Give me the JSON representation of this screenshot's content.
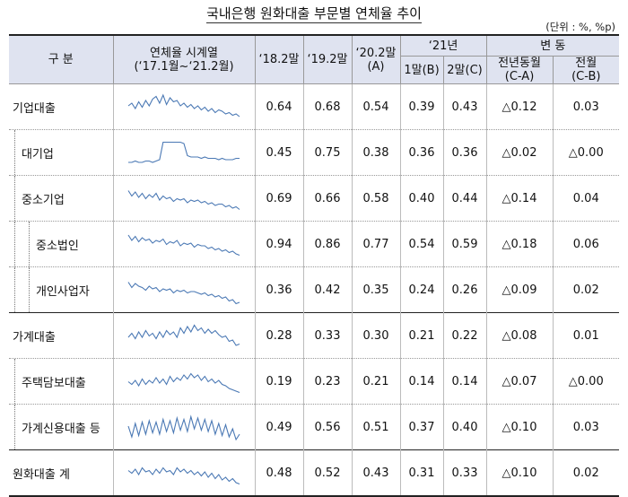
{
  "title": "국내은행 원화대출 부문별 연체율 추이",
  "unit": "(단위 : %, %p)",
  "header": {
    "category": "구  분",
    "sparkline_line1": "연체율 시계열",
    "sparkline_line2": "(‘17.1월~‘21.2월)",
    "col_18": "‘18.2말",
    "col_19": "‘19.2말",
    "col_20": "‘20.2말",
    "col_20_sub": "(A)",
    "col_21": "‘21년",
    "col_21_1": "1말",
    "col_21_1_sub": "(B)",
    "col_21_2": "2말",
    "col_21_2_sub": "(C)",
    "change": "변  동",
    "change_yoy": "전년동월",
    "change_yoy_sub": "(C-A)",
    "change_mom": "전월",
    "change_mom_sub": "(C-B)"
  },
  "rows": [
    {
      "label": "기업대출",
      "v18": "0.64",
      "v19": "0.68",
      "v20": "0.54",
      "b": "0.39",
      "c": "0.43",
      "yoy": "△0.12",
      "mom": "0.03"
    },
    {
      "label": "대기업",
      "v18": "0.45",
      "v19": "0.75",
      "v20": "0.38",
      "b": "0.36",
      "c": "0.36",
      "yoy": "△0.02",
      "mom": "△0.00"
    },
    {
      "label": "중소기업",
      "v18": "0.69",
      "v19": "0.66",
      "v20": "0.58",
      "b": "0.40",
      "c": "0.44",
      "yoy": "△0.14",
      "mom": "0.04"
    },
    {
      "label": "중소법인",
      "v18": "0.94",
      "v19": "0.86",
      "v20": "0.77",
      "b": "0.54",
      "c": "0.59",
      "yoy": "△0.18",
      "mom": "0.06"
    },
    {
      "label": "개인사업자",
      "v18": "0.36",
      "v19": "0.42",
      "v20": "0.35",
      "b": "0.24",
      "c": "0.26",
      "yoy": "△0.09",
      "mom": "0.02"
    },
    {
      "label": "가계대출",
      "v18": "0.28",
      "v19": "0.33",
      "v20": "0.30",
      "b": "0.21",
      "c": "0.22",
      "yoy": "△0.08",
      "mom": "0.01"
    },
    {
      "label": "주택담보대출",
      "v18": "0.19",
      "v19": "0.23",
      "v20": "0.21",
      "b": "0.14",
      "c": "0.14",
      "yoy": "△0.07",
      "mom": "△0.00"
    },
    {
      "label": "가계신용대출 등",
      "v18": "0.49",
      "v19": "0.56",
      "v20": "0.51",
      "b": "0.37",
      "c": "0.40",
      "yoy": "△0.10",
      "mom": "0.03"
    },
    {
      "label": "원화대출 계",
      "v18": "0.48",
      "v19": "0.52",
      "v20": "0.43",
      "b": "0.31",
      "c": "0.33",
      "yoy": "△0.10",
      "mom": "0.02"
    }
  ],
  "sparkline_color": "#4a78b4"
}
